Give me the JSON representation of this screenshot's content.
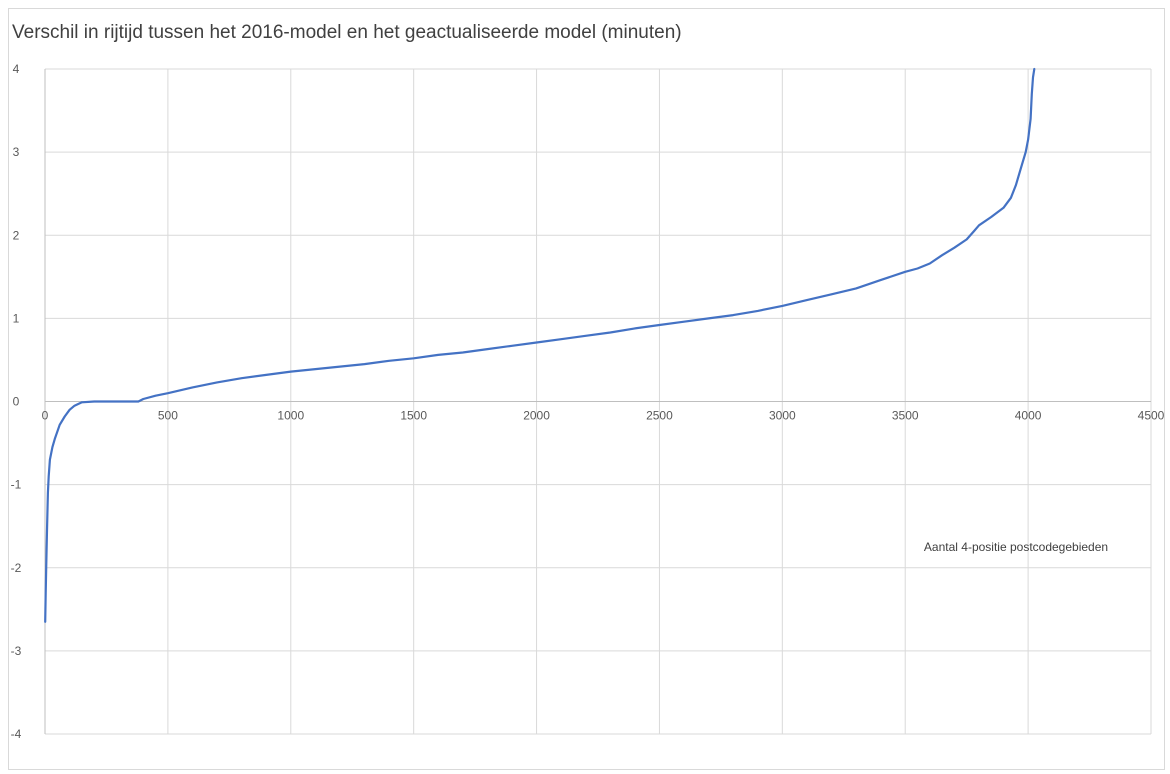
{
  "chart_data": {
    "type": "line",
    "title": "Verschil in rijtijd tussen het 2016-model en het geactualiseerde model (minuten)",
    "xlabel": "",
    "ylabel": "",
    "xlim": [
      0,
      4500
    ],
    "ylim": [
      -4,
      4
    ],
    "x_ticks": [
      "0",
      "500",
      "1000",
      "1500",
      "2000",
      "2500",
      "3000",
      "3500",
      "4000",
      "4500"
    ],
    "y_ticks": [
      "-4",
      "-3",
      "-2",
      "-1",
      "0",
      "1",
      "2",
      "3",
      "4"
    ],
    "grid": true,
    "line_color": "#4472c4",
    "annotation": "Aantal 4-positie postcodegebieden",
    "series": [
      {
        "x": [
          1,
          3,
          5,
          8,
          12,
          15,
          20,
          30,
          40,
          60,
          80,
          100,
          120,
          150,
          200,
          250,
          300,
          350,
          380,
          400,
          450,
          500,
          600,
          700,
          800,
          900,
          1000,
          1100,
          1200,
          1300,
          1400,
          1500,
          1600,
          1700,
          1800,
          1900,
          2000,
          2100,
          2200,
          2300,
          2400,
          2500,
          2600,
          2700,
          2800,
          2900,
          3000,
          3100,
          3200,
          3300,
          3400,
          3500,
          3550,
          3600,
          3650,
          3700,
          3750,
          3780,
          3800,
          3850,
          3900,
          3930,
          3950,
          3970,
          3990,
          4000,
          4010,
          4015,
          4020,
          4025
        ],
        "y": [
          -2.65,
          -2.3,
          -2.0,
          -1.55,
          -1.1,
          -0.9,
          -0.7,
          -0.55,
          -0.45,
          -0.28,
          -0.18,
          -0.1,
          -0.05,
          -0.01,
          0.0,
          0.0,
          0.0,
          0.0,
          0.0,
          0.03,
          0.07,
          0.1,
          0.17,
          0.23,
          0.28,
          0.32,
          0.36,
          0.39,
          0.42,
          0.45,
          0.49,
          0.52,
          0.56,
          0.59,
          0.63,
          0.67,
          0.71,
          0.75,
          0.79,
          0.83,
          0.88,
          0.92,
          0.96,
          1.0,
          1.04,
          1.09,
          1.15,
          1.22,
          1.29,
          1.36,
          1.46,
          1.56,
          1.6,
          1.66,
          1.76,
          1.85,
          1.95,
          2.05,
          2.12,
          2.22,
          2.33,
          2.45,
          2.6,
          2.8,
          3.0,
          3.15,
          3.4,
          3.7,
          3.9,
          4.0
        ]
      }
    ]
  }
}
